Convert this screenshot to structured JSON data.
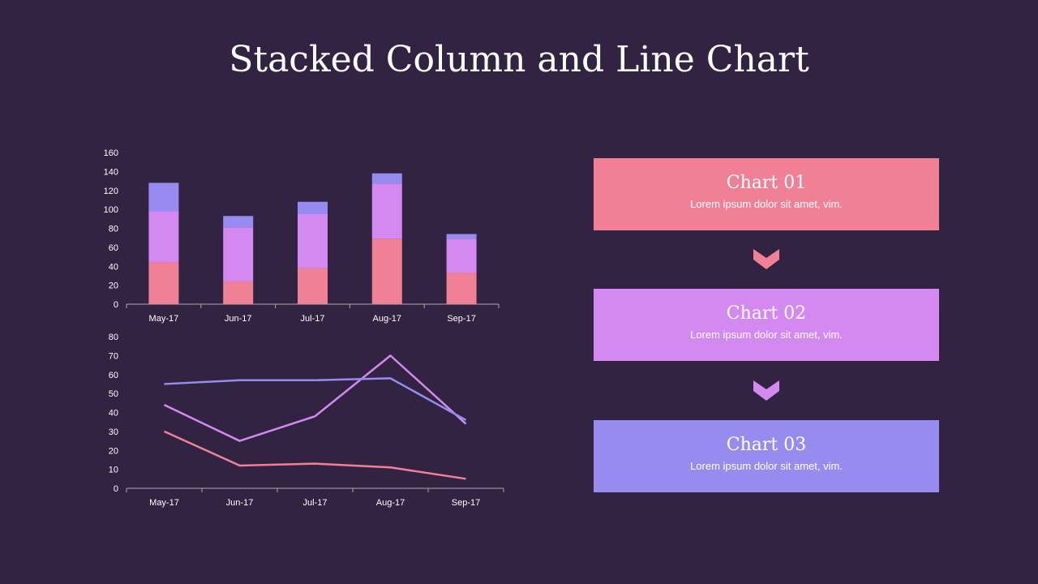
{
  "title": "Stacked Column and Line Chart",
  "colors": {
    "background": "#312341",
    "pink": "#ef8096",
    "orchid": "#d389ef",
    "lavender": "#988bf0"
  },
  "chart_data": [
    {
      "type": "bar",
      "stacked": true,
      "categories": [
        "May-17",
        "Jun-17",
        "Jul-17",
        "Aug-17",
        "Sep-17"
      ],
      "ylim": [
        0,
        160
      ],
      "yticks": [
        0,
        20,
        40,
        60,
        80,
        100,
        120,
        140,
        160
      ],
      "grid": false,
      "series": [
        {
          "color": "#ef8096",
          "values": [
            44,
            24,
            38,
            69,
            33
          ]
        },
        {
          "color": "#d389ef",
          "values": [
            54,
            57,
            57,
            58,
            36
          ]
        },
        {
          "color": "#988bf0",
          "values": [
            30,
            12,
            13,
            11,
            5
          ]
        }
      ]
    },
    {
      "type": "line",
      "categories": [
        "May-17",
        "Jun-17",
        "Jul-17",
        "Aug-17",
        "Sep-17"
      ],
      "ylim": [
        0,
        80
      ],
      "yticks": [
        0,
        10,
        20,
        30,
        40,
        50,
        60,
        70,
        80
      ],
      "grid": false,
      "series": [
        {
          "color": "#d389ef",
          "values": [
            44,
            25,
            38,
            70,
            34
          ]
        },
        {
          "color": "#988bf0",
          "values": [
            55,
            57,
            57,
            58,
            36
          ]
        },
        {
          "color": "#ef8096",
          "values": [
            30,
            12,
            13,
            11,
            5
          ]
        }
      ]
    }
  ],
  "cards": [
    {
      "title": "Chart 01",
      "text": "Lorem ipsum dolor sit amet, vim.",
      "color": "#ef8096"
    },
    {
      "title": "Chart 02",
      "text": "Lorem ipsum dolor sit amet, vim.",
      "color": "#d389ef"
    },
    {
      "title": "Chart 03",
      "text": "Lorem ipsum dolor sit amet, vim.",
      "color": "#988bf0"
    }
  ],
  "arrows": [
    {
      "icon": "chevron-down-icon",
      "color": "#ef8096"
    },
    {
      "icon": "chevron-down-icon",
      "color": "#d389ef"
    }
  ]
}
